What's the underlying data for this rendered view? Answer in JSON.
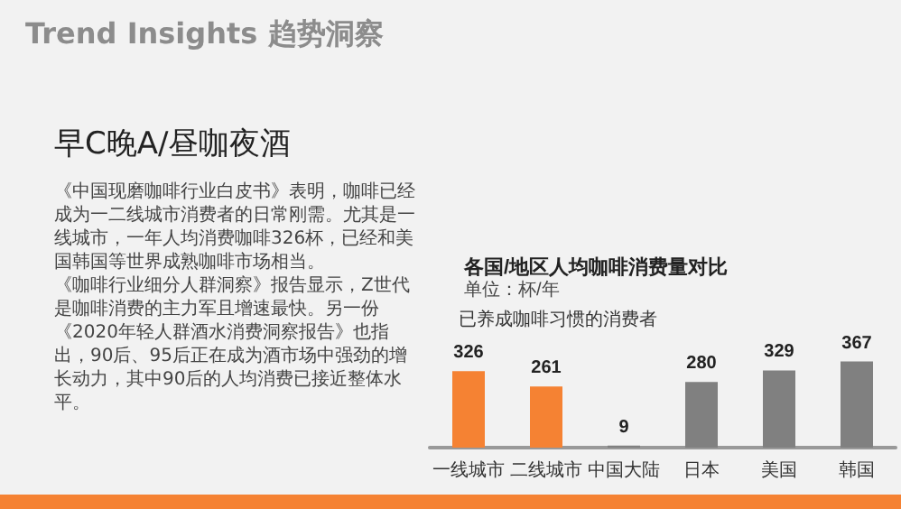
{
  "chart_data": {
    "type": "bar",
    "title": "各国/地区人均咖啡消费量对比",
    "subtitle": "单位：杯/年",
    "ylabel": "已养成咖啡习惯的消费者",
    "categories": [
      "一线城市",
      "二线城市",
      "中国大陆",
      "日本",
      "美国",
      "韩国"
    ],
    "values": [
      326,
      261,
      9,
      280,
      329,
      367
    ],
    "colors": [
      "#f58233",
      "#f58233",
      "#808080",
      "#808080",
      "#808080",
      "#808080"
    ],
    "data_labels": true,
    "grid": false,
    "annotations": [
      "Trend Insights 趋势洞察",
      "早C晚A/昼咖夜酒",
      "《中国现磨咖啡行业白皮书》表明，咖啡已经成为一二线城市消费者的日常刚需。尤其是一线城市，一年人均消费咖啡326杯，已经和美国韩国等世界成熟咖啡市场相当。",
      "《咖啡行业细分人群洞察》报告显示，Z世代是咖啡消费的主力军且增速最快。另一份《2020年轻人群酒水消费洞察报告》也指出，90后、95后正在成为酒市场中强劲的增长动力，其中90后的人均消费已接近整体水平。"
    ]
  }
}
